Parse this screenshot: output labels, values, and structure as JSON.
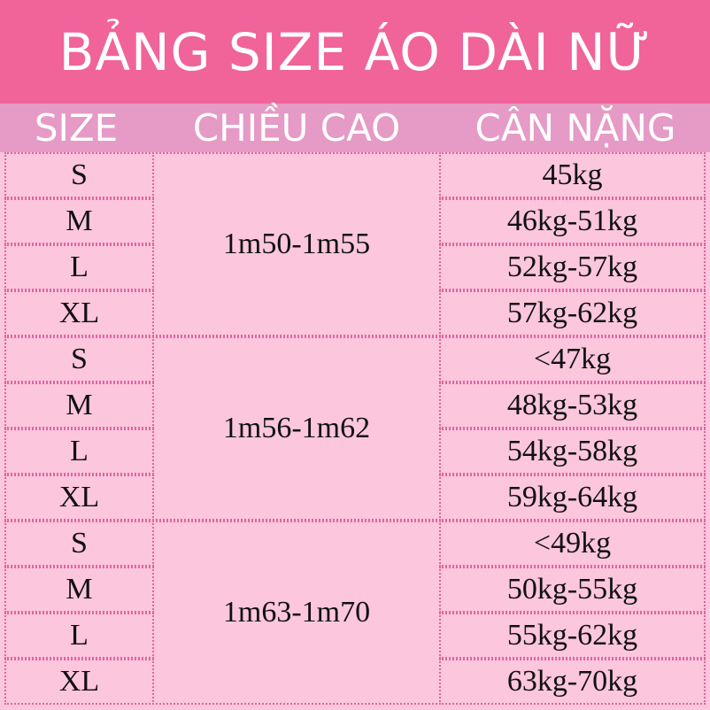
{
  "title": "BẢNG SIZE ÁO DÀI NỮ",
  "headers": [
    "SIZE",
    "CHIỀU CAO",
    "CÂN NẶNG"
  ],
  "groups": [
    {
      "height": "1m50-1m55",
      "rows": [
        {
          "size": "S",
          "weight": "45kg"
        },
        {
          "size": "M",
          "weight": "46kg-51kg"
        },
        {
          "size": "L",
          "weight": "52kg-57kg"
        },
        {
          "size": "XL",
          "weight": "57kg-62kg"
        }
      ]
    },
    {
      "height": "1m56-1m62",
      "rows": [
        {
          "size": "S",
          "weight": "<47kg"
        },
        {
          "size": "M",
          "weight": "48kg-53kg"
        },
        {
          "size": "L",
          "weight": "54kg-58kg"
        },
        {
          "size": "XL",
          "weight": "59kg-64kg"
        }
      ]
    },
    {
      "height": "1m63-1m70",
      "rows": [
        {
          "size": "S",
          "weight": "<49kg"
        },
        {
          "size": "M",
          "weight": "50kg-55kg"
        },
        {
          "size": "L",
          "weight": "55kg-62kg"
        },
        {
          "size": "XL",
          "weight": "63kg-70kg"
        }
      ]
    }
  ],
  "colors": {
    "title_bg": "#f0649a",
    "header_bg": "#e69ac6",
    "body_bg": "#fcc6dc",
    "border": "#e0659f"
  }
}
